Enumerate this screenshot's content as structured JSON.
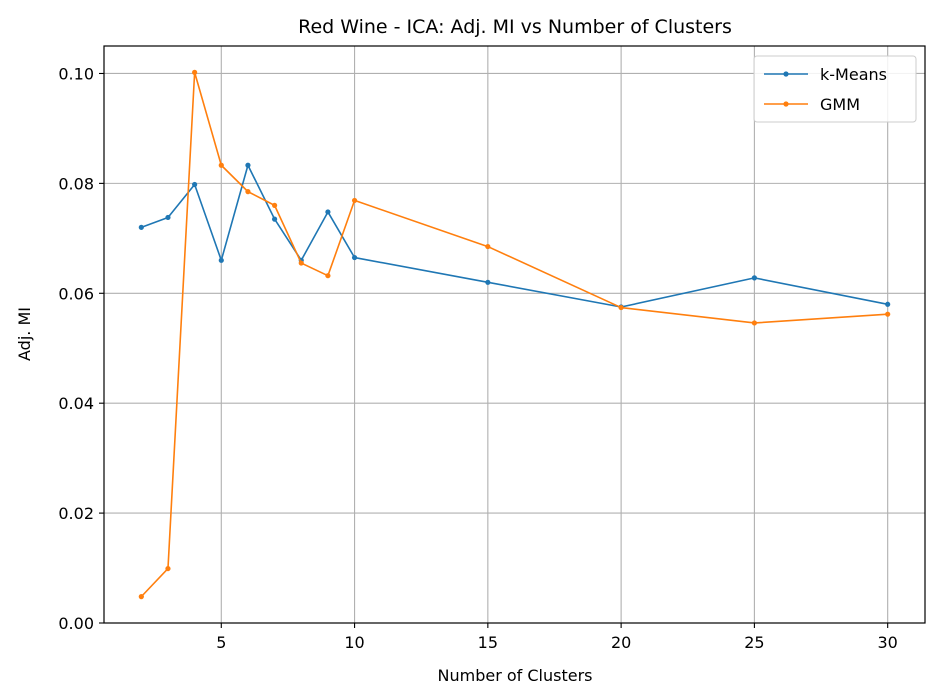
{
  "chart_data": {
    "type": "line",
    "title": "Red Wine - ICA: Adj. MI vs Number of Clusters",
    "xlabel": "Number of Clusters",
    "ylabel": "Adj. MI",
    "xlim": [
      0.6,
      31.4
    ],
    "ylim": [
      0.0,
      0.105
    ],
    "xticks": [
      5,
      10,
      15,
      20,
      25,
      30
    ],
    "xtick_labels": [
      "5",
      "10",
      "15",
      "20",
      "25",
      "30"
    ],
    "yticks": [
      0.0,
      0.02,
      0.04,
      0.06,
      0.08,
      0.1
    ],
    "ytick_labels": [
      "0.00",
      "0.02",
      "0.04",
      "0.06",
      "0.08",
      "0.10"
    ],
    "grid": true,
    "legend_position": "top-right",
    "x": [
      2,
      3,
      4,
      5,
      6,
      7,
      8,
      9,
      10,
      15,
      20,
      25,
      30
    ],
    "series": [
      {
        "name": "k-Means",
        "color": "#1f77b4",
        "values": [
          0.072,
          0.0738,
          0.0798,
          0.066,
          0.0833,
          0.0735,
          0.066,
          0.0748,
          0.0665,
          0.062,
          0.0575,
          0.0628,
          0.058
        ]
      },
      {
        "name": "GMM",
        "color": "#ff7f0e",
        "values": [
          0.0048,
          0.0099,
          0.1002,
          0.0833,
          0.0785,
          0.076,
          0.0655,
          0.0632,
          0.0769,
          0.0685,
          0.0574,
          0.0546,
          0.0562
        ]
      }
    ]
  }
}
